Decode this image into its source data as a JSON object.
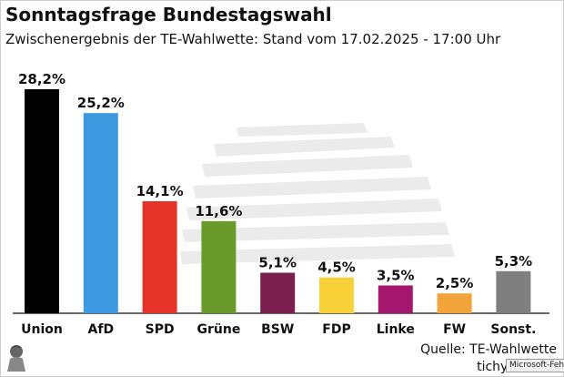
{
  "header": {
    "title": "Sonntagsfrage Bundestagswahl",
    "subtitle": "Zwischenergebnis der TE-Wahlwette: Stand vom 17.02.2025 - 17:00 Uhr"
  },
  "footer": {
    "source": "Quelle: TE-Wahlwette",
    "brand": "tichyse",
    "tooltip": "Microsoft-Fehle"
  },
  "chart_data": {
    "type": "bar",
    "title": "Sonntagsfrage Bundestagswahl",
    "subtitle": "Zwischenergebnis der TE-Wahlwette: Stand vom 17.02.2025 - 17:00 Uhr",
    "categories": [
      "Union",
      "AfD",
      "SPD",
      "Grüne",
      "BSW",
      "FDP",
      "Linke",
      "FW",
      "Sonst."
    ],
    "values": [
      28.2,
      25.2,
      14.1,
      11.6,
      5.1,
      4.5,
      3.5,
      2.5,
      5.3
    ],
    "value_labels": [
      "28,2%",
      "25,2%",
      "14,1%",
      "11,6%",
      "5,1%",
      "4,5%",
      "3,5%",
      "2,5%",
      "5,3%"
    ],
    "colors": [
      "#000000",
      "#3d9ae0",
      "#e5332a",
      "#6a9a2a",
      "#7a1f4e",
      "#f7d137",
      "#a3186c",
      "#f2a33a",
      "#7f7f7f"
    ],
    "ylim": [
      0,
      30
    ],
    "xlabel": "",
    "ylabel": "",
    "grid": false,
    "legend": "none"
  }
}
